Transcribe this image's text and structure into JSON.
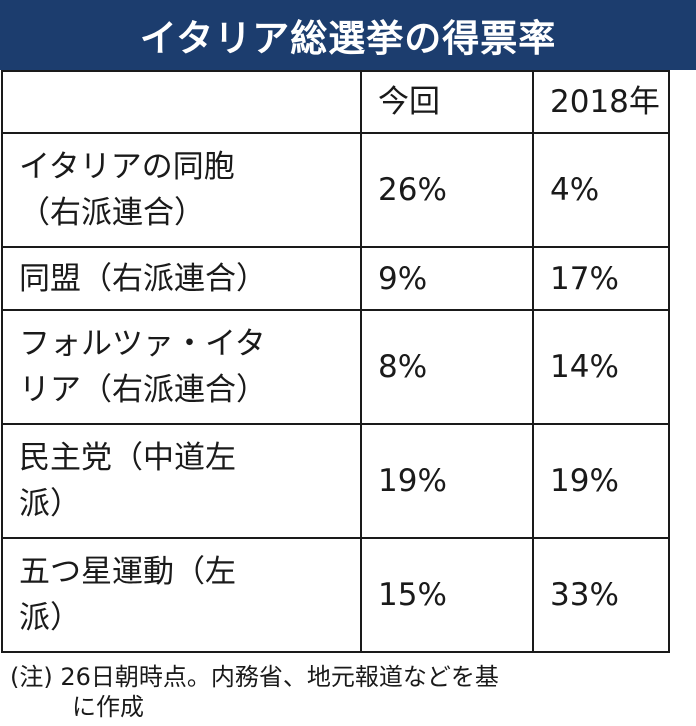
{
  "title": "イタリア総選挙の得票率",
  "colors": {
    "title_bar": "#1c3d6e",
    "title_text": "#ffffff",
    "grid": "#1a1a1a"
  },
  "chart_data": {
    "type": "table",
    "title": "イタリア総選挙の得票率",
    "columns": [
      "",
      "今回",
      "2018年"
    ],
    "rows": [
      {
        "party": "イタリアの同胞（右派連合）",
        "lines": [
          "イタリアの同胞",
          "（右派連合）"
        ],
        "current": "26%",
        "y2018": "4%"
      },
      {
        "party": "同盟（右派連合）",
        "lines": [
          "同盟（右派連合）"
        ],
        "current": "9%",
        "y2018": "17%"
      },
      {
        "party": "フォルツァ・イタリア（右派連合）",
        "lines": [
          "フォルツァ・イタ",
          "リア（右派連合）"
        ],
        "current": "8%",
        "y2018": "14%"
      },
      {
        "party": "民主党（中道左派）",
        "lines": [
          "民主党（中道左",
          "派）"
        ],
        "current": "19%",
        "y2018": "19%"
      },
      {
        "party": "五つ星運動（左派）",
        "lines": [
          "五つ星運動（左",
          "派）"
        ],
        "current": "15%",
        "y2018": "33%"
      }
    ]
  },
  "footnote": {
    "line1": "(注) 26日朝時点。内務省、地元報道などを基",
    "line2": "に作成"
  }
}
